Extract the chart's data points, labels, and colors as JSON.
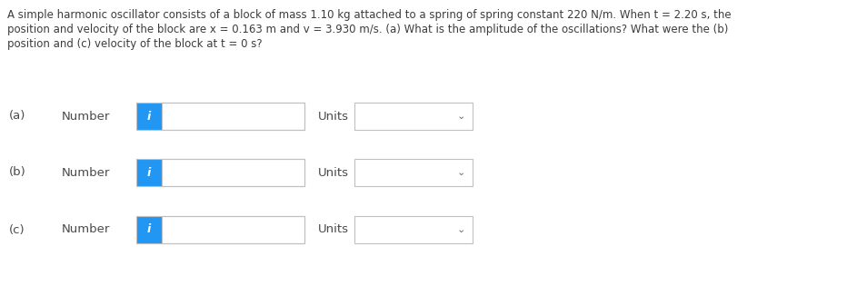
{
  "bg_color": "#ffffff",
  "title_lines": [
    "A simple harmonic oscillator consists of a block of mass 1.10 kg attached to a spring of spring constant 220 N/m. When t = 2.20 s, the",
    "position and velocity of the block are x = 0.163 m and v = 3.930 m/s. (a) What is the amplitude of the oscillations? What were the (b)",
    "position and (c) velocity of the block at t = 0 s?"
  ],
  "rows": [
    {
      "label": "(a)",
      "text": "Number"
    },
    {
      "label": "(b)",
      "text": "Number"
    },
    {
      "label": "(c)",
      "text": "Number"
    }
  ],
  "text_color": "#3c3c3c",
  "label_color": "#4a4a4a",
  "units_label": "Units",
  "i_text": "i",
  "i_bg": "#2196f3",
  "i_fg": "#ffffff",
  "box_border_color": "#c0c0c0",
  "chevron_color": "#666666",
  "font_size_title": 8.5,
  "font_size_label": 9.5,
  "font_size_i": 9
}
